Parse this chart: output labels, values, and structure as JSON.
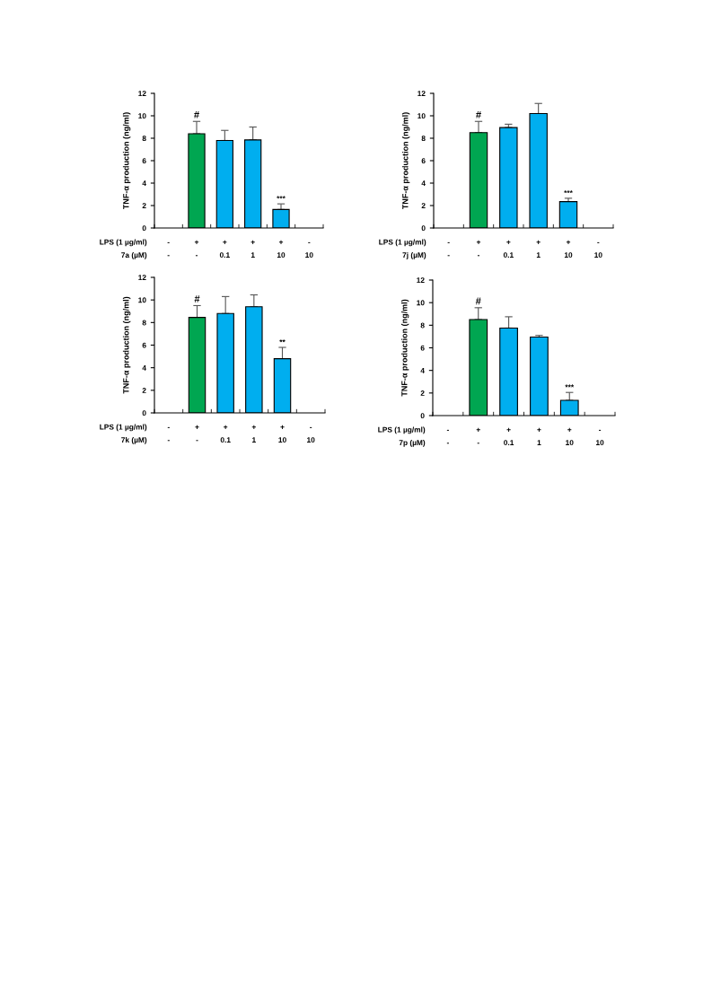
{
  "chart_data": [
    {
      "type": "bar",
      "ylabel": "TNF-α production (ng/ml)",
      "categories": [
        "-\n-",
        "+\n-",
        "+\n0.1",
        "+\n1",
        "+\n10",
        "-\n10"
      ],
      "values": [
        null,
        8.4,
        7.8,
        7.85,
        1.65,
        null
      ],
      "errors": [
        null,
        [
          8.4,
          9.5
        ],
        [
          7.8,
          8.7
        ],
        [
          7.85,
          9.0
        ],
        [
          1.65,
          2.15
        ],
        null
      ],
      "colors": [
        "#00a651",
        "#00a651",
        "#00aeef",
        "#00aeef",
        "#00aeef",
        "#00aeef"
      ],
      "ylim": [
        0,
        12
      ],
      "yticks": [
        0,
        2,
        4,
        6,
        8,
        10,
        12
      ],
      "grid": false,
      "annotations": [
        {
          "text": "#",
          "x": "+\n-",
          "y": 9.5
        },
        {
          "text": "***",
          "x": "+\n10",
          "y": 2.15
        },
        "LPS (1 µg/ml)\n7a (µM)"
      ]
    },
    {
      "type": "bar",
      "ylabel": "TNF-α production (ng/ml)",
      "categories": [
        "-\n-",
        "+\n-",
        "+\n0.1",
        "+\n1",
        "+\n10",
        "-\n10"
      ],
      "values": [
        null,
        8.5,
        8.95,
        10.2,
        2.35,
        null
      ],
      "errors": [
        null,
        [
          8.5,
          9.5
        ],
        [
          8.95,
          9.25
        ],
        [
          10.2,
          11.1
        ],
        [
          2.35,
          2.65
        ],
        null
      ],
      "colors": [
        "#00a651",
        "#00a651",
        "#00aeef",
        "#00aeef",
        "#00aeef",
        "#00aeef"
      ],
      "ylim": [
        0,
        12
      ],
      "yticks": [
        0,
        2,
        4,
        6,
        8,
        10,
        12
      ],
      "grid": false,
      "annotations": [
        {
          "text": "#",
          "x": "+\n-",
          "y": 9.5
        },
        {
          "text": "***",
          "x": "+\n10",
          "y": 2.65
        },
        "LPS (1 µg/ml)\n7j (µM)"
      ]
    },
    {
      "type": "bar",
      "ylabel": "TNF-α production (ng/ml)",
      "categories": [
        "-\n-",
        "+\n-",
        "+\n0.1",
        "+\n1",
        "+\n10",
        "-\n10"
      ],
      "values": [
        null,
        8.45,
        8.8,
        9.4,
        4.8,
        null
      ],
      "errors": [
        null,
        [
          8.45,
          9.5
        ],
        [
          8.8,
          10.3
        ],
        [
          9.4,
          10.45
        ],
        [
          4.8,
          5.8
        ],
        null
      ],
      "colors": [
        "#00a651",
        "#00a651",
        "#00aeef",
        "#00aeef",
        "#00aeef",
        "#00aeef"
      ],
      "ylim": [
        0,
        12
      ],
      "yticks": [
        0,
        2,
        4,
        6,
        8,
        10,
        12
      ],
      "grid": false,
      "annotations": [
        {
          "text": "#",
          "x": "+\n-",
          "y": 9.5
        },
        {
          "text": "**",
          "x": "+\n10",
          "y": 5.8
        },
        "LPS (1 µg/ml)\n7k (µM)"
      ]
    },
    {
      "type": "bar",
      "ylabel": "TNF-α production (ng/ml)",
      "categories": [
        "-\n-",
        "+\n-",
        "+\n0.1",
        "+\n1",
        "+\n10",
        "-\n10"
      ],
      "values": [
        null,
        8.5,
        7.75,
        6.95,
        1.35,
        null
      ],
      "errors": [
        null,
        [
          8.5,
          9.55
        ],
        [
          7.75,
          8.75
        ],
        [
          6.95,
          7.1
        ],
        [
          1.35,
          2.05
        ],
        null
      ],
      "colors": [
        "#00a651",
        "#00a651",
        "#00aeef",
        "#00aeef",
        "#00aeef",
        "#00aeef"
      ],
      "ylim": [
        0,
        12
      ],
      "yticks": [
        0,
        2,
        4,
        6,
        8,
        10,
        12
      ],
      "grid": false,
      "annotations": [
        {
          "text": "#",
          "x": "+\n-",
          "y": 9.55
        },
        {
          "text": "***",
          "x": "+\n10",
          "y": 2.05
        },
        "LPS (1 µg/ml)\n7p (µM)"
      ]
    }
  ]
}
